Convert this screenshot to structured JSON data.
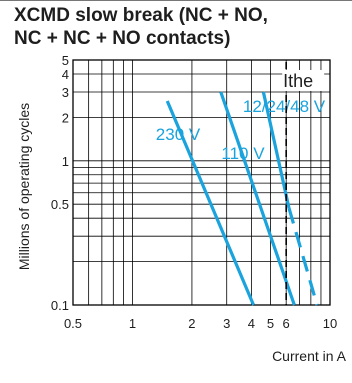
{
  "title": {
    "line1": "XCMD slow break (NC + NO,",
    "line2": "NC + NC + NO contacts)"
  },
  "chart_data": {
    "type": "line",
    "title": "XCMD slow break (NC + NO, NC + NC + NO contacts)",
    "xlabel": "Current in A",
    "ylabel": "Millions of operating cycles",
    "xscale": "log",
    "yscale": "log",
    "xlim": [
      0.5,
      10
    ],
    "ylim": [
      0.1,
      5
    ],
    "grid": true,
    "x_ticks": [
      {
        "value": 0.5,
        "label": "0.5"
      },
      {
        "value": 1,
        "label": "1"
      },
      {
        "value": 2,
        "label": "2"
      },
      {
        "value": 3,
        "label": "3"
      },
      {
        "value": 4,
        "label": "4"
      },
      {
        "value": 5,
        "label": "5"
      },
      {
        "value": 6,
        "label": "6"
      },
      {
        "value": 10,
        "label": "10"
      }
    ],
    "y_ticks": [
      {
        "value": 0.1,
        "label": "0.1"
      },
      {
        "value": 0.5,
        "label": "0.5"
      },
      {
        "value": 1,
        "label": "1"
      },
      {
        "value": 2,
        "label": "2"
      },
      {
        "value": 3,
        "label": "3"
      },
      {
        "value": 4,
        "label": "4"
      },
      {
        "value": 5,
        "label": "5"
      }
    ],
    "series": [
      {
        "name": "230 V",
        "color": "#1aa3dc",
        "style": "solid",
        "points": [
          [
            1.5,
            2.6
          ],
          [
            4.1,
            0.1
          ]
        ]
      },
      {
        "name": "110 V",
        "color": "#1aa3dc",
        "style": "solid",
        "points": [
          [
            2.8,
            3.0
          ],
          [
            6.6,
            0.1
          ]
        ]
      },
      {
        "name": "12/24/48 V",
        "color": "#1aa3dc",
        "style": "solid-dashed",
        "points": [
          [
            4.6,
            3.0
          ],
          [
            6.2,
            0.47
          ]
        ],
        "dashed_points": [
          [
            6.2,
            0.47
          ],
          [
            8.6,
            0.1
          ]
        ]
      }
    ],
    "reference_line": {
      "label": "Ithe",
      "x": 6.0,
      "style": "dashed",
      "color": "#000000"
    },
    "colors": {
      "curve": "#1aa3dc",
      "grid": "#000000",
      "text": "#1e1e1e"
    }
  }
}
